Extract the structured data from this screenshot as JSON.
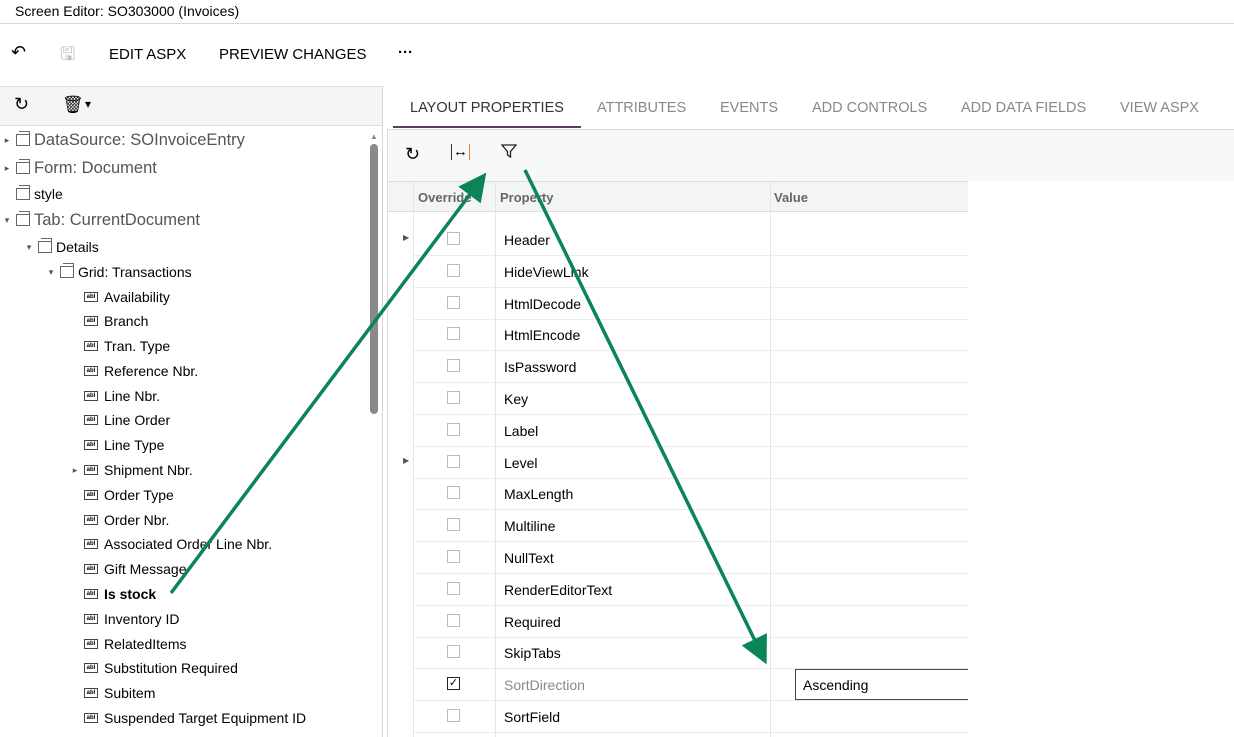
{
  "window": {
    "title": "Screen Editor: SO303000 (Invoices)"
  },
  "toolbar": {
    "undo_icon": "undo-icon",
    "save_icon": "save-icon",
    "edit_aspx": "EDIT ASPX",
    "preview_changes": "PREVIEW CHANGES",
    "more": "···"
  },
  "left_toolbar": {
    "refresh_icon": "refresh-icon",
    "delete_icon": "trash-icon",
    "dropdown": "▾"
  },
  "tree": [
    {
      "label": "DataSource: SOInvoiceEntry",
      "level": 0,
      "toggle": "▸",
      "type": "node",
      "big": true
    },
    {
      "label": "Form: Document",
      "level": 0,
      "toggle": "▸",
      "type": "node",
      "big": true
    },
    {
      "label": "style",
      "level": 0,
      "toggle": "",
      "type": "node"
    },
    {
      "label": "Tab: CurrentDocument",
      "level": 0,
      "toggle": "▾",
      "type": "node",
      "big": true
    },
    {
      "label": "Details",
      "level": 1,
      "toggle": "▾",
      "type": "node"
    },
    {
      "label": "Grid: Transactions",
      "level": 2,
      "toggle": "▾",
      "type": "node"
    },
    {
      "label": "Availability",
      "level": 3,
      "toggle": "",
      "type": "field"
    },
    {
      "label": "Branch",
      "level": 3,
      "toggle": "",
      "type": "field"
    },
    {
      "label": "Tran. Type",
      "level": 3,
      "toggle": "",
      "type": "field"
    },
    {
      "label": "Reference Nbr.",
      "level": 3,
      "toggle": "",
      "type": "field"
    },
    {
      "label": "Line Nbr.",
      "level": 3,
      "toggle": "",
      "type": "field"
    },
    {
      "label": "Line Order",
      "level": 3,
      "toggle": "",
      "type": "field"
    },
    {
      "label": "Line Type",
      "level": 3,
      "toggle": "",
      "type": "field"
    },
    {
      "label": "Shipment Nbr.",
      "level": 3,
      "toggle": "▸",
      "type": "field"
    },
    {
      "label": "Order Type",
      "level": 3,
      "toggle": "",
      "type": "field"
    },
    {
      "label": "Order Nbr.",
      "level": 3,
      "toggle": "",
      "type": "field"
    },
    {
      "label": "Associated Order Line Nbr.",
      "level": 3,
      "toggle": "",
      "type": "field"
    },
    {
      "label": "Gift Message",
      "level": 3,
      "toggle": "",
      "type": "field"
    },
    {
      "label": "Is stock",
      "level": 3,
      "toggle": "",
      "type": "field",
      "selected": true
    },
    {
      "label": "Inventory ID",
      "level": 3,
      "toggle": "",
      "type": "field"
    },
    {
      "label": "RelatedItems",
      "level": 3,
      "toggle": "",
      "type": "field"
    },
    {
      "label": "Substitution Required",
      "level": 3,
      "toggle": "",
      "type": "field"
    },
    {
      "label": "Subitem",
      "level": 3,
      "toggle": "",
      "type": "field"
    },
    {
      "label": "Suspended Target Equipment ID",
      "level": 3,
      "toggle": "",
      "type": "field"
    }
  ],
  "field_icon_text": "abl",
  "tabs": [
    {
      "label": "LAYOUT PROPERTIES",
      "active": true
    },
    {
      "label": "ATTRIBUTES"
    },
    {
      "label": "EVENTS"
    },
    {
      "label": "ADD CONTROLS"
    },
    {
      "label": "ADD DATA FIELDS"
    },
    {
      "label": "VIEW ASPX"
    }
  ],
  "right_toolbar": {
    "refresh_icon": "refresh-icon",
    "fit_columns_icon": "fit-columns-icon",
    "filter_icon": "filter-icon"
  },
  "grid": {
    "columns": [
      "Override",
      "Property",
      "Value"
    ],
    "rows": [
      {
        "property": "Header",
        "override": false,
        "expandable": true
      },
      {
        "property": "HideViewLink",
        "override": false
      },
      {
        "property": "HtmlDecode",
        "override": false
      },
      {
        "property": "HtmlEncode",
        "override": false
      },
      {
        "property": "IsPassword",
        "override": false
      },
      {
        "property": "Key",
        "override": false
      },
      {
        "property": "Label",
        "override": false
      },
      {
        "property": "Level",
        "override": false,
        "expandable": true
      },
      {
        "property": "MaxLength",
        "override": false
      },
      {
        "property": "Multiline",
        "override": false
      },
      {
        "property": "NullText",
        "override": false
      },
      {
        "property": "RenderEditorText",
        "override": false
      },
      {
        "property": "Required",
        "override": false
      },
      {
        "property": "SkipTabs",
        "override": false
      },
      {
        "property": "SortDirection",
        "override": true,
        "value": "Ascending"
      },
      {
        "property": "SortField",
        "override": false
      }
    ]
  },
  "colors": {
    "accent": "#5b3c5e",
    "arrow": "#0b8457"
  }
}
